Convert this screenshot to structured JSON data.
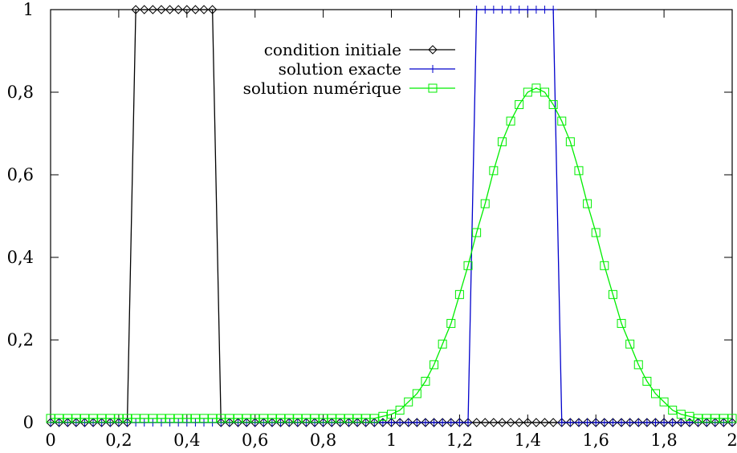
{
  "chart_data": {
    "type": "line",
    "title": "",
    "xlabel": "",
    "ylabel": "",
    "xlim": [
      0,
      2
    ],
    "ylim": [
      0,
      1
    ],
    "x_ticks": [
      0,
      0.2,
      0.4,
      0.6,
      0.8,
      1,
      1.2,
      1.4,
      1.6,
      1.8,
      2
    ],
    "x_tick_labels": [
      "0",
      "0,2",
      "0,4",
      "0,6",
      "0,8",
      "1",
      "1,2",
      "1,4",
      "1,6",
      "1,8",
      "2"
    ],
    "y_ticks": [
      0,
      0.2,
      0.4,
      0.6,
      0.8,
      1
    ],
    "y_tick_labels": [
      "0",
      "0,2",
      "0,4",
      "0,6",
      "0,8",
      "1"
    ],
    "grid": false,
    "legend_position": "top-right",
    "series": [
      {
        "name": "condition initiale",
        "color": "#000000",
        "marker": "diamond",
        "marker_step": 1,
        "x": [
          0,
          0.225,
          0.25,
          0.475,
          0.5,
          2
        ],
        "y": [
          0,
          0,
          1,
          1,
          0,
          0
        ],
        "sampled": true,
        "dx": 0.025
      },
      {
        "name": "solution exacte",
        "color": "#0000cc",
        "marker": "plus",
        "marker_step": 1,
        "x": [
          0,
          1.225,
          1.25,
          1.475,
          1.5,
          2
        ],
        "y": [
          0,
          0,
          1,
          1,
          0,
          0
        ],
        "sampled": true,
        "dx": 0.025
      },
      {
        "name": "solution numérique",
        "color": "#00ee00",
        "marker": "square",
        "marker_step": 1,
        "sampled": false,
        "x": [
          0,
          0.025,
          0.05,
          0.075,
          0.1,
          0.125,
          0.15,
          0.175,
          0.2,
          0.225,
          0.25,
          0.275,
          0.3,
          0.325,
          0.35,
          0.375,
          0.4,
          0.425,
          0.45,
          0.475,
          0.5,
          0.525,
          0.55,
          0.575,
          0.6,
          0.625,
          0.65,
          0.675,
          0.7,
          0.725,
          0.75,
          0.775,
          0.8,
          0.825,
          0.85,
          0.875,
          0.9,
          0.925,
          0.95,
          0.975,
          1,
          1.025,
          1.05,
          1.075,
          1.1,
          1.125,
          1.15,
          1.175,
          1.2,
          1.225,
          1.25,
          1.275,
          1.3,
          1.325,
          1.35,
          1.375,
          1.4,
          1.425,
          1.45,
          1.475,
          1.5,
          1.525,
          1.55,
          1.575,
          1.6,
          1.625,
          1.65,
          1.675,
          1.7,
          1.725,
          1.75,
          1.775,
          1.8,
          1.825,
          1.85,
          1.875,
          1.9,
          1.925,
          1.95,
          1.975,
          2
        ],
        "y": [
          0.01,
          0.01,
          0.01,
          0.01,
          0.01,
          0.01,
          0.01,
          0.01,
          0.01,
          0.01,
          0.01,
          0.01,
          0.01,
          0.01,
          0.01,
          0.01,
          0.01,
          0.01,
          0.01,
          0.01,
          0.01,
          0.01,
          0.01,
          0.01,
          0.01,
          0.01,
          0.01,
          0.01,
          0.01,
          0.01,
          0.01,
          0.01,
          0.01,
          0.01,
          0.01,
          0.01,
          0.01,
          0.01,
          0.01,
          0.015,
          0.02,
          0.03,
          0.05,
          0.07,
          0.1,
          0.14,
          0.19,
          0.24,
          0.31,
          0.38,
          0.46,
          0.53,
          0.61,
          0.68,
          0.73,
          0.77,
          0.8,
          0.81,
          0.8,
          0.77,
          0.73,
          0.68,
          0.61,
          0.53,
          0.46,
          0.38,
          0.31,
          0.24,
          0.19,
          0.14,
          0.1,
          0.07,
          0.05,
          0.03,
          0.02,
          0.015,
          0.01,
          0.01,
          0.01,
          0.01,
          0.01
        ]
      }
    ]
  }
}
